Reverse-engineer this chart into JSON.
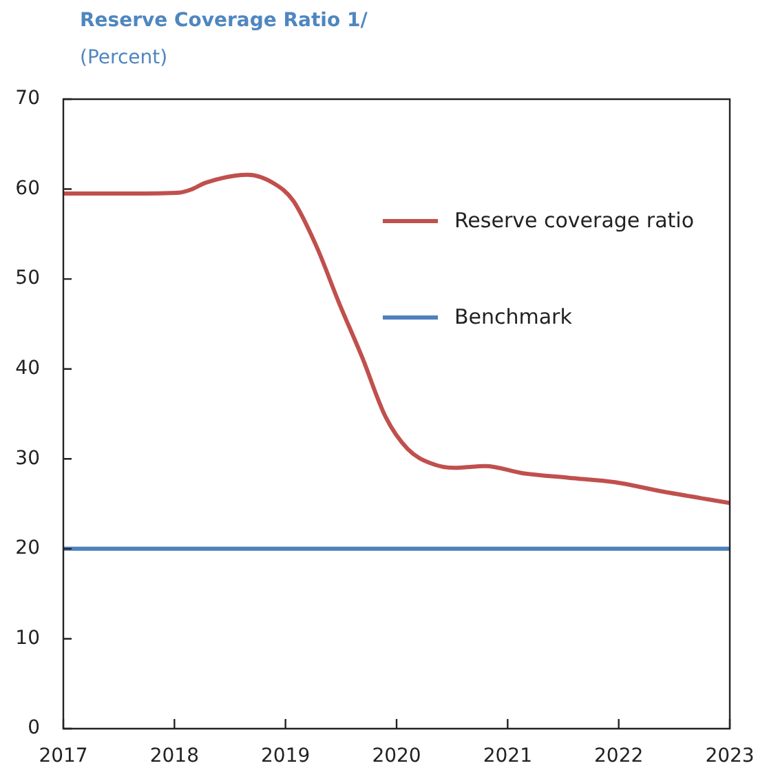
{
  "chart_data": {
    "type": "line",
    "title": "Reserve Coverage Ratio 1/",
    "subtitle": "(Percent)",
    "xlim": [
      2017,
      2023
    ],
    "xticks": [
      2017,
      2018,
      2019,
      2020,
      2021,
      2022,
      2023
    ],
    "ylim": [
      0,
      70
    ],
    "yticks": [
      0,
      10,
      20,
      30,
      40,
      50,
      60,
      70
    ],
    "series": [
      {
        "name": "Reserve coverage ratio",
        "color": "#c0504d",
        "x": [
          2017,
          2017.5,
          2018.04,
          2018.16,
          2018.28,
          2018.66,
          2018.9,
          2019.07,
          2019.28,
          2019.48,
          2019.69,
          2019.9,
          2020.1,
          2020.31,
          2020.52,
          2020.8,
          2021.14,
          2021.55,
          2021.97,
          2022.38,
          2023
        ],
        "values": [
          59.5,
          59.5,
          59.6,
          60.0,
          60.7,
          61.6,
          60.6,
          58.7,
          53.6,
          47.4,
          41.3,
          34.7,
          31.1,
          29.5,
          29.0,
          29.2,
          28.4,
          27.9,
          27.4,
          26.4,
          25.1
        ]
      },
      {
        "name": "Benchmark",
        "color": "#4f81bd",
        "x": [
          2017,
          2023
        ],
        "values": [
          20,
          20
        ]
      }
    ],
    "legend": "top right",
    "marker": "none",
    "line_style": "solid"
  }
}
